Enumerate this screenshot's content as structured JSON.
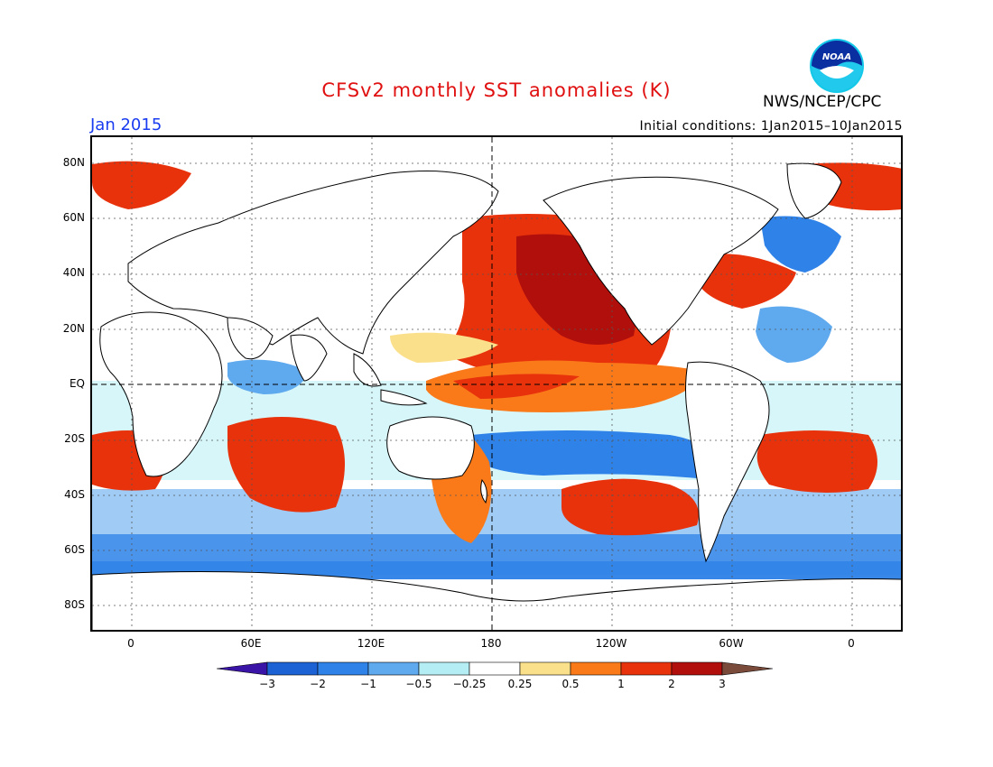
{
  "header": {
    "title": "CFSv2 monthly SST anomalies (K)",
    "month": "Jan 2015",
    "initial_conditions": "Initial conditions: 1Jan2015–10Jan2015",
    "organization": "NWS/NCEP/CPC",
    "logo_text": "NOAA"
  },
  "map": {
    "projection": "cylindrical equidistant",
    "lat_labels": [
      "80N",
      "60N",
      "40N",
      "20N",
      "EQ",
      "20S",
      "40S",
      "60S",
      "80S"
    ],
    "lon_labels": [
      "0",
      "60E",
      "120E",
      "180",
      "120W",
      "60W",
      "0"
    ],
    "reference_lines": [
      "EQ",
      "180"
    ],
    "grid": "dotted"
  },
  "colorbar": {
    "labels": [
      "−3",
      "−2",
      "−1",
      "−0.5",
      "−0.25",
      "0.25",
      "0.5",
      "1",
      "2",
      "3"
    ],
    "bins": [
      {
        "range": "< -3",
        "color": "#3a14a6"
      },
      {
        "range": "-3 to -2",
        "color": "#1c62d4"
      },
      {
        "range": "-2 to -1",
        "color": "#2f82e8"
      },
      {
        "range": "-1 to -0.5",
        "color": "#5fa9ee"
      },
      {
        "range": "-0.5 to -0.25",
        "color": "#b4eef4"
      },
      {
        "range": "-0.25 to 0.25",
        "color": "#ffffff"
      },
      {
        "range": "0.25 to 0.5",
        "color": "#fbe08c"
      },
      {
        "range": "0.5 to 1",
        "color": "#fa7a1a"
      },
      {
        "range": "1 to 2",
        "color": "#e8320c"
      },
      {
        "range": "2 to 3",
        "color": "#b10f0b"
      },
      {
        "range": "> 3",
        "color": "#7a4a3a"
      }
    ]
  }
}
